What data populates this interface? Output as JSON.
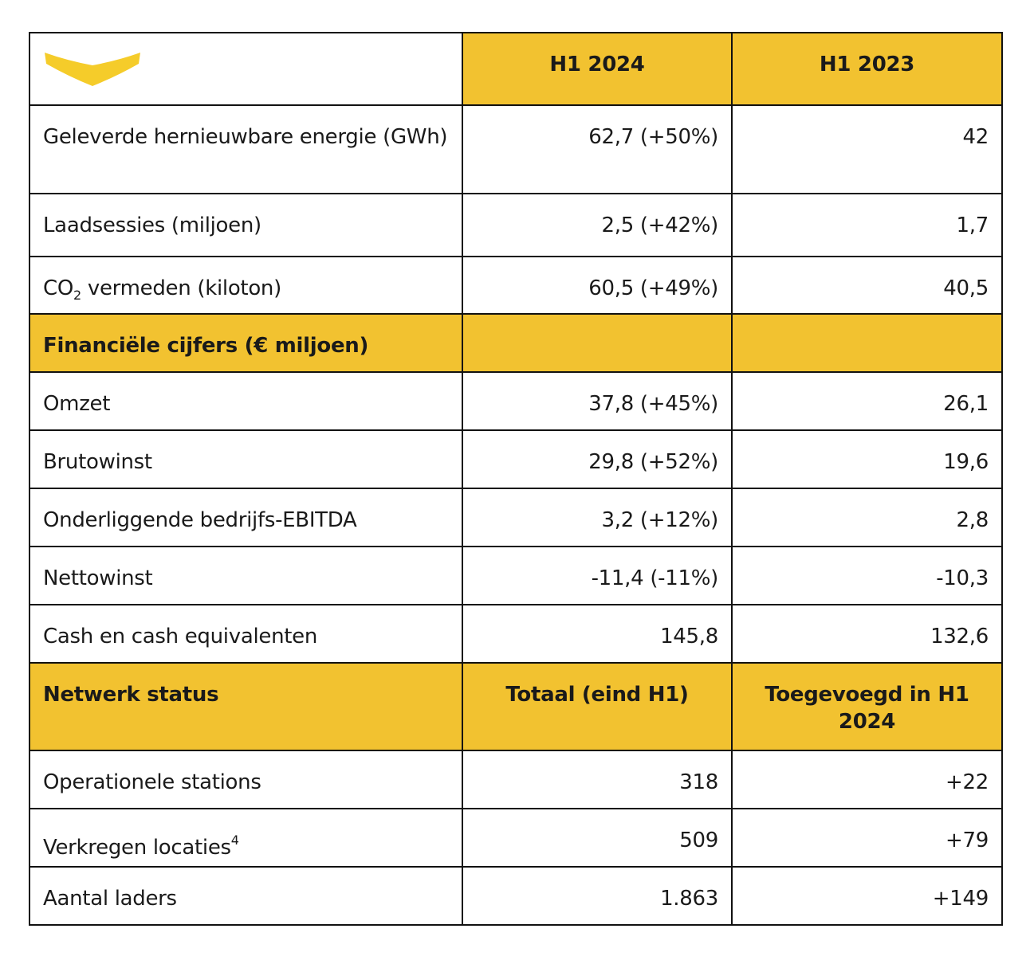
{
  "table": {
    "header": [
      "H1 2024",
      "H1 2023"
    ],
    "rows": [
      {
        "label": "Geleverde hernieuwbare energie (GWh)",
        "values": [
          "62,7 (+50%)",
          "42"
        ]
      },
      {
        "label": "Laadsessies  (miljoen)",
        "values": [
          "2,5 (+42%)",
          "1,7"
        ]
      },
      {
        "label": "CO",
        "label_sub": "2",
        "label_after": "vermeden (kiloton)",
        "values": [
          "60,5 (+49%)",
          "40,5"
        ]
      },
      {
        "section": "Financiële cijfers (€ miljoen)"
      },
      {
        "label": "Omzet",
        "values": [
          "37,8 (+45%)",
          "26,1"
        ]
      },
      {
        "label": "Brutowinst",
        "values": [
          "29,8 (+52%)",
          "19,6"
        ]
      },
      {
        "label": "Onderliggende bedrijfs-EBITDA",
        "values": [
          "3,2 (+12%)",
          "2,8"
        ]
      },
      {
        "label": "Nettowinst",
        "values": [
          "-11,4 (-11%)",
          "-10,3"
        ]
      },
      {
        "label": "Cash en cash equivalenten",
        "values": [
          "145,8",
          "132,6"
        ]
      },
      {
        "section": "Netwerk status",
        "headings": [
          "Totaal (eind H1)",
          "Toegevoegd  in H1 2024"
        ]
      },
      {
        "label": "Operationele stations",
        "values": [
          "318",
          "+22"
        ]
      },
      {
        "label": "Verkregen locaties",
        "label_sup": "4",
        "values": [
          "509",
          "+79"
        ]
      },
      {
        "label": "Aantal laders",
        "values": [
          "1.863",
          "+149"
        ]
      }
    ]
  }
}
